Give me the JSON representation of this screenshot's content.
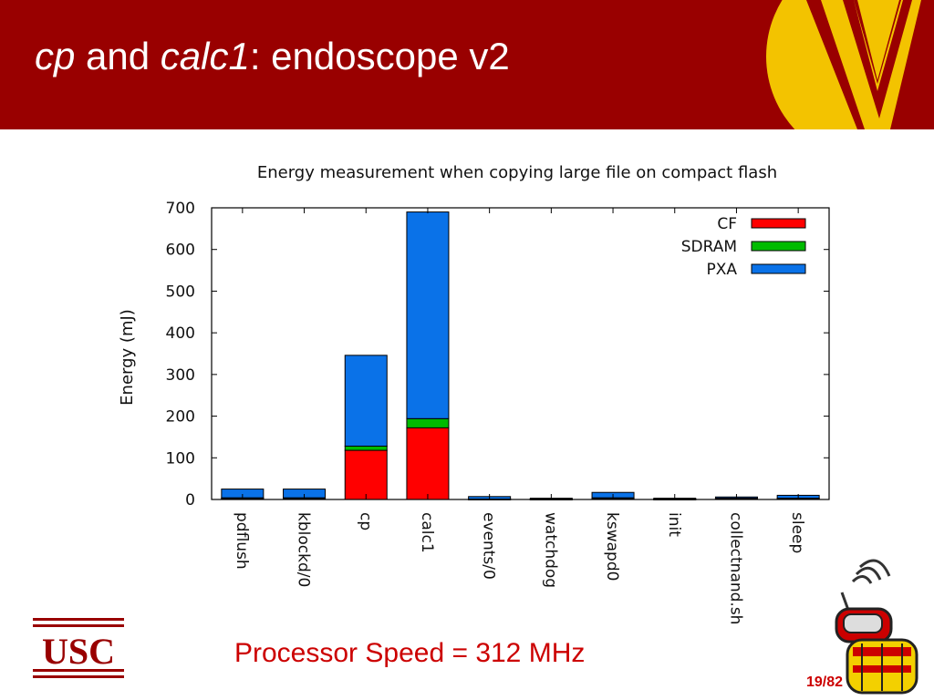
{
  "slide": {
    "title_part1": "cp",
    "title_part2": " and ",
    "title_part3": "calc1",
    "title_part4": ": endoscope v2",
    "usc_logo_text": "USC",
    "processor_speed": "Processor Speed = 312  MHz",
    "page_number": "19/82"
  },
  "colors": {
    "header": "#990000",
    "logo_yellow": "#f3c300",
    "cf": "#ff0000",
    "sdram": "#00bb00",
    "pxa": "#0a72e8",
    "accent_text": "#cc0000"
  },
  "chart_data": {
    "type": "bar",
    "stacked": true,
    "title": "Energy measurement when copying large file on compact flash",
    "xlabel": "",
    "ylabel": "Energy (mJ)",
    "ylim": [
      0,
      700
    ],
    "yticks": [
      "0",
      "100",
      "200",
      "300",
      "400",
      "500",
      "600",
      "700"
    ],
    "categories": [
      "pdflush",
      "kblockd/0",
      "cp",
      "calc1",
      "events/0",
      "watchdog",
      "kswapd0",
      "init",
      "collectnand.sh",
      "sleep"
    ],
    "series": [
      {
        "name": "CF",
        "color": "#ff0000",
        "values": [
          3,
          3,
          118,
          172,
          1,
          1,
          3,
          1,
          2,
          2
        ]
      },
      {
        "name": "SDRAM",
        "color": "#00bb00",
        "values": [
          1,
          1,
          10,
          22,
          0,
          0,
          1,
          0,
          1,
          1
        ]
      },
      {
        "name": "PXA",
        "color": "#0a72e8",
        "values": [
          21,
          21,
          218,
          496,
          6,
          2,
          13,
          2,
          3,
          7
        ]
      }
    ],
    "legend_position": "top-right",
    "grid": false
  }
}
